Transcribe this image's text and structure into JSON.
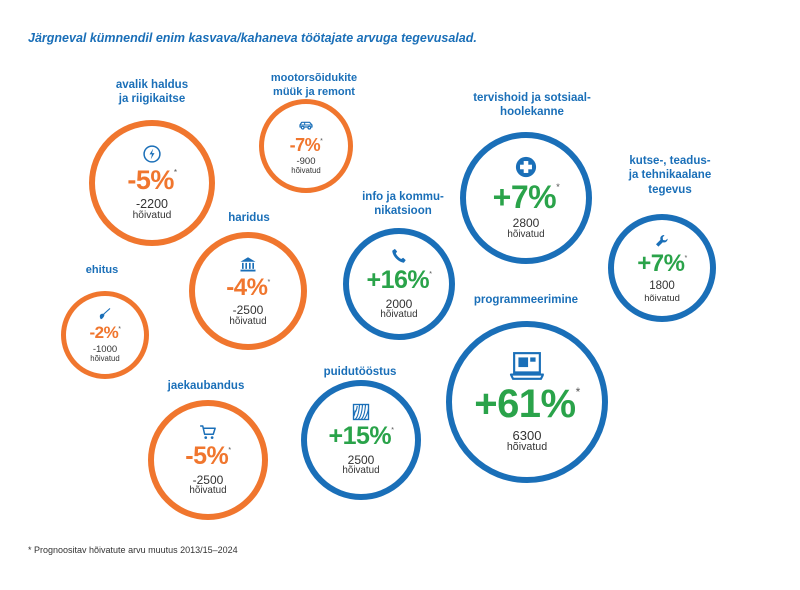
{
  "title": "Järgneval kümnendil enim kasvava/kahaneva töötajate arvuga tegevusalad.",
  "footnote": "* Prognoositav hõivatute arvu muutus 2013/15–2024",
  "colors": {
    "growth_border": "#1a6fb8",
    "growth_text": "#2aa34a",
    "decline": "#f0762e",
    "label": "#1a6fb8"
  },
  "chart_data": {
    "type": "bubble",
    "title": "Järgneval kümnendil enim kasvava/kahaneva töötajate arvuga tegevusalad.",
    "value_label": "Prognoositav hõivatute arvu muutus 2013/15–2024",
    "sectors": [
      {
        "id": "public-admin",
        "label": [
          "avalik haldus",
          "ja riigikaitse"
        ],
        "percent": "-5%",
        "change": -5,
        "employed_change": "-2200",
        "employed_unit": "hõivatud",
        "icon": "lightning-icon",
        "trend": "decline"
      },
      {
        "id": "vehicles",
        "label": [
          "mootorsõidukite",
          "müük ja remont"
        ],
        "percent": "-7%",
        "change": -7,
        "employed_change": "-900",
        "employed_unit": "hõivatud",
        "icon": "car-icon",
        "trend": "decline"
      },
      {
        "id": "education",
        "label": [
          "haridus"
        ],
        "percent": "-4%",
        "change": -4,
        "employed_change": "-2500",
        "employed_unit": "hõivatud",
        "icon": "bank-icon",
        "trend": "decline"
      },
      {
        "id": "construction",
        "label": [
          "ehitus"
        ],
        "percent": "-2%",
        "change": -2,
        "employed_change": "-1000",
        "employed_unit": "hõivatud",
        "icon": "shovel-icon",
        "trend": "decline"
      },
      {
        "id": "retail",
        "label": [
          "jaekaubandus"
        ],
        "percent": "-5%",
        "change": -5,
        "employed_change": "-2500",
        "employed_unit": "hõivatud",
        "icon": "cart-icon",
        "trend": "decline"
      },
      {
        "id": "health",
        "label": [
          "tervishoid ja sotsiaal-",
          "hoolekanne"
        ],
        "percent": "+7%",
        "change": 7,
        "employed_change": "2800",
        "employed_unit": "hõivatud",
        "icon": "medical-cross-icon",
        "trend": "growth"
      },
      {
        "id": "ict",
        "label": [
          "info ja kommu-",
          "nikatsioon"
        ],
        "percent": "+16%",
        "change": 16,
        "employed_change": "2000",
        "employed_unit": "hõivatud",
        "icon": "phone-icon",
        "trend": "growth"
      },
      {
        "id": "professional",
        "label": [
          "kutse-, teadus-",
          "ja tehnikaalane",
          "tegevus"
        ],
        "percent": "+7%",
        "change": 7,
        "employed_change": "1800",
        "employed_unit": "hõivatud",
        "icon": "wrench-icon",
        "trend": "growth"
      },
      {
        "id": "wood",
        "label": [
          "puidutööstus"
        ],
        "percent": "+15%",
        "change": 15,
        "employed_change": "2500",
        "employed_unit": "hõivatud",
        "icon": "wood-grain-icon",
        "trend": "growth"
      },
      {
        "id": "programming",
        "label": [
          "programmeerimine"
        ],
        "percent": "+61%",
        "change": 61,
        "employed_change": "6300",
        "employed_unit": "hõivatud",
        "icon": "laptop-icon",
        "trend": "growth"
      }
    ]
  }
}
